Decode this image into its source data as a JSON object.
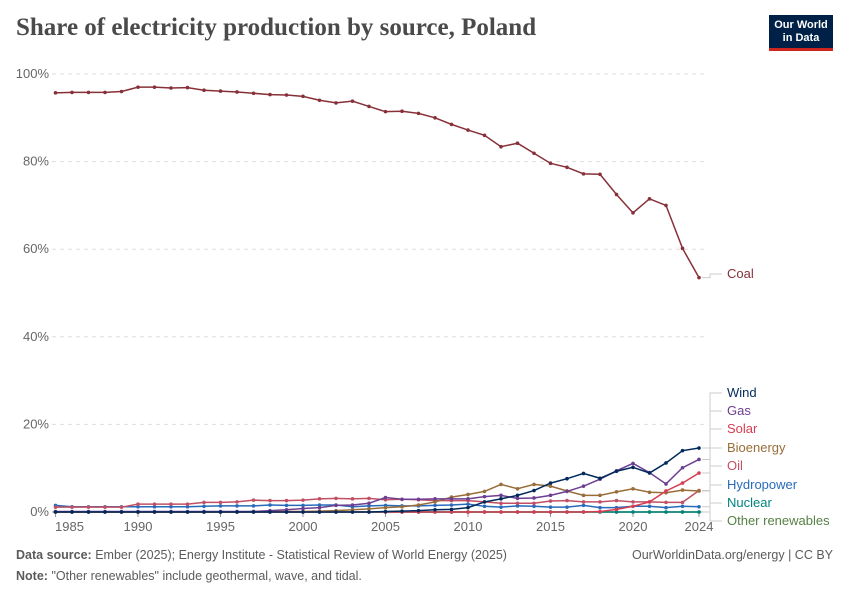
{
  "title": "Share of electricity production by source, Poland",
  "logo": {
    "line1": "Our World",
    "line2": "in Data"
  },
  "footer": {
    "source_label": "Data source:",
    "source": "Ember (2025); Energy Institute - Statistical Review of World Energy (2025)",
    "url": "OurWorldinData.org/energy | CC BY",
    "note_label": "Note:",
    "note": "\"Other renewables\" include geothermal, wave, and tidal."
  },
  "chart_data": {
    "type": "line",
    "title": "Share of electricity production by source, Poland",
    "xlim": [
      1985,
      2024
    ],
    "ylim": [
      0,
      100
    ],
    "x_ticks": [
      1985,
      1990,
      1995,
      2000,
      2005,
      2010,
      2015,
      2020,
      2024
    ],
    "y_ticks": [
      "0%",
      "20%",
      "40%",
      "60%",
      "80%",
      "100%"
    ],
    "grid": "horizontal dashed",
    "legend": "right, labels at line ends",
    "x": [
      1985,
      1986,
      1987,
      1988,
      1989,
      1990,
      1991,
      1992,
      1993,
      1994,
      1995,
      1996,
      1997,
      1998,
      1999,
      2000,
      2001,
      2002,
      2003,
      2004,
      2005,
      2006,
      2007,
      2008,
      2009,
      2010,
      2011,
      2012,
      2013,
      2014,
      2015,
      2016,
      2017,
      2018,
      2019,
      2020,
      2021,
      2022,
      2023,
      2024
    ],
    "series": [
      {
        "name": "Coal",
        "color": "#883039",
        "values": [
          95.7,
          95.8,
          95.8,
          95.8,
          96.0,
          97.0,
          97.0,
          96.8,
          96.9,
          96.3,
          96.1,
          95.9,
          95.6,
          95.3,
          95.2,
          94.9,
          94.0,
          93.4,
          93.8,
          92.6,
          91.4,
          91.5,
          91.0,
          90.0,
          88.5,
          87.2,
          86.0,
          83.4,
          84.2,
          81.9,
          79.6,
          78.7,
          77.2,
          77.1,
          72.5,
          68.3,
          71.5,
          70.0,
          60.2,
          53.5
        ]
      },
      {
        "name": "Wind",
        "color": "#00295b",
        "values": [
          0,
          0,
          0,
          0,
          0,
          0,
          0,
          0,
          0,
          0,
          0,
          0,
          0,
          0,
          0,
          0,
          0,
          0,
          0,
          0,
          0.1,
          0.2,
          0.3,
          0.5,
          0.6,
          1.0,
          2.3,
          3.0,
          3.8,
          4.9,
          6.6,
          7.6,
          8.8,
          7.7,
          9.3,
          10.2,
          8.9,
          11.2,
          14.0,
          14.6
        ]
      },
      {
        "name": "Gas",
        "color": "#6d3e91",
        "values": [
          0.1,
          0.1,
          0.1,
          0.1,
          0.1,
          0.1,
          0.1,
          0.1,
          0.1,
          0.1,
          0.1,
          0.1,
          0.1,
          0.3,
          0.5,
          0.8,
          1.0,
          1.5,
          1.6,
          2.0,
          3.3,
          2.9,
          2.9,
          3.0,
          3.0,
          3.0,
          3.5,
          3.8,
          3.1,
          3.2,
          3.8,
          4.7,
          5.9,
          7.5,
          9.4,
          11.1,
          9.0,
          6.4,
          10.1,
          12.0
        ]
      },
      {
        "name": "Solar",
        "color": "#d73c50",
        "values": [
          0,
          0,
          0,
          0,
          0,
          0,
          0,
          0,
          0,
          0,
          0,
          0,
          0,
          0,
          0,
          0,
          0,
          0,
          0,
          0,
          0,
          0,
          0,
          0,
          0,
          0,
          0,
          0,
          0,
          0,
          0,
          0,
          0,
          0.1,
          0.6,
          1.3,
          2.3,
          4.8,
          6.6,
          8.9
        ]
      },
      {
        "name": "Bioenergy",
        "color": "#996d39",
        "values": [
          0,
          0,
          0,
          0,
          0,
          0,
          0,
          0,
          0,
          0,
          0,
          0,
          0.1,
          0.1,
          0.1,
          0.1,
          0.2,
          0.3,
          0.5,
          0.7,
          1.0,
          1.2,
          1.6,
          2.3,
          3.4,
          4.0,
          4.7,
          6.3,
          5.3,
          6.3,
          5.9,
          4.8,
          3.8,
          3.8,
          4.6,
          5.3,
          4.5,
          4.4,
          5.0,
          4.8
        ]
      },
      {
        "name": "Oil",
        "color": "#c15065",
        "values": [
          1.1,
          1.1,
          1.1,
          1.1,
          1.1,
          1.8,
          1.8,
          1.8,
          1.8,
          2.2,
          2.2,
          2.3,
          2.7,
          2.6,
          2.6,
          2.7,
          3.0,
          3.1,
          3.0,
          3.1,
          2.8,
          2.9,
          2.8,
          2.6,
          2.6,
          2.6,
          2.3,
          2.0,
          2.0,
          2.0,
          2.5,
          2.6,
          2.3,
          2.3,
          2.6,
          2.3,
          2.3,
          2.2,
          2.2,
          4.9
        ]
      },
      {
        "name": "Hydropower",
        "color": "#286bbb",
        "values": [
          1.5,
          1.2,
          1.2,
          1.2,
          1.2,
          1.2,
          1.2,
          1.2,
          1.2,
          1.3,
          1.4,
          1.4,
          1.4,
          1.6,
          1.5,
          1.5,
          1.6,
          1.6,
          1.2,
          1.4,
          1.5,
          1.4,
          1.4,
          1.5,
          1.6,
          1.8,
          1.3,
          1.1,
          1.4,
          1.3,
          1.1,
          1.1,
          1.5,
          1.0,
          1.0,
          1.3,
          1.3,
          1.0,
          1.3,
          1.2
        ]
      },
      {
        "name": "Nuclear",
        "color": "#00847e",
        "values": [
          0,
          0,
          0,
          0,
          0,
          0,
          0,
          0,
          0,
          0,
          0,
          0,
          0,
          0,
          0,
          0,
          0,
          0,
          0,
          0,
          0,
          0,
          0,
          0,
          0,
          0,
          0,
          0,
          0,
          0,
          0,
          0,
          0,
          0,
          0,
          0,
          0,
          0,
          0,
          0
        ]
      },
      {
        "name": "Other renewables",
        "color": "#578145",
        "values": [
          0,
          0,
          0,
          0,
          0,
          0,
          0,
          0,
          0,
          0,
          0,
          0,
          0,
          0,
          0,
          0,
          0,
          0,
          0,
          0,
          0,
          0,
          0,
          0,
          0,
          0,
          0,
          0,
          0,
          0,
          0,
          0,
          0,
          0,
          0,
          0,
          0,
          0,
          0,
          0
        ]
      }
    ]
  }
}
